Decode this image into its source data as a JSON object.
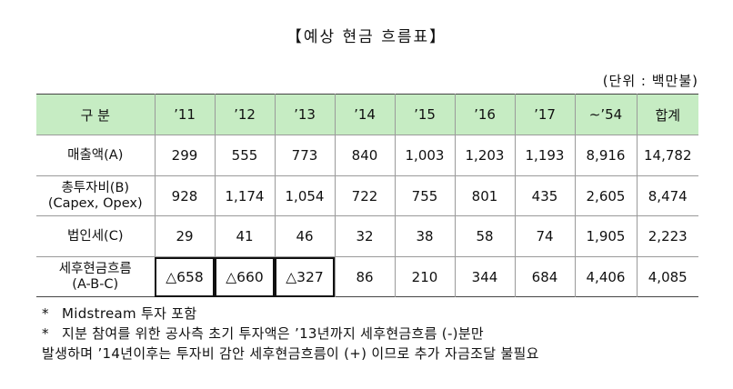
{
  "title": "【예상  현금  흐름표】",
  "unit": "(단위 : 백만불)",
  "table": {
    "headers": [
      "구 분",
      "’11",
      "’12",
      "’13",
      "’14",
      "’15",
      "’16",
      "’17",
      "∼’54",
      "합계"
    ],
    "rows": [
      {
        "label": "매출액(A)",
        "label2": "",
        "values": [
          "299",
          "555",
          "773",
          "840",
          "1,003",
          "1,203",
          "1,193",
          "8,916",
          "14,782"
        ]
      },
      {
        "label": "총투자비(B)",
        "label2": "(Capex, Opex)",
        "values": [
          "928",
          "1,174",
          "1,054",
          "722",
          "755",
          "801",
          "435",
          "2,605",
          "8,474"
        ]
      },
      {
        "label": "법인세(C)",
        "label2": "",
        "values": [
          "29",
          "41",
          "46",
          "32",
          "38",
          "58",
          "74",
          "1,905",
          "2,223"
        ]
      },
      {
        "label": "세후현금흐름",
        "label2": "(A-B-C)",
        "values": [
          "△658",
          "△660",
          "△327",
          "86",
          "210",
          "344",
          "684",
          "4,406",
          "4,085"
        ]
      }
    ]
  },
  "notes": {
    "star": "*",
    "n1": "Midstream  투자  포함",
    "n2_line1": "지분  참여를  위한  공사측  초기  투자액은  ’13년까지  세후현금흐름  (-)분만",
    "n2_line2": "발생하며  ’14년이후는  투자비  감안  세후현금흐름이  (+) 이므로  추가  자금조달  불필요"
  }
}
